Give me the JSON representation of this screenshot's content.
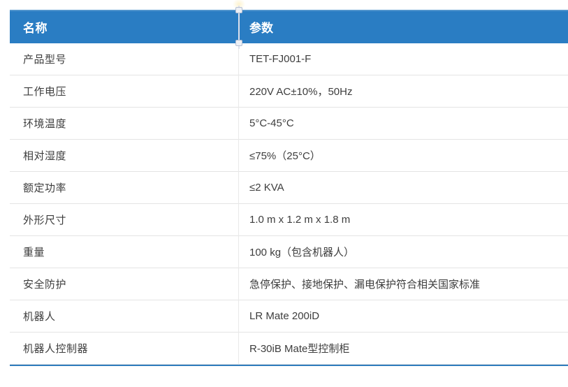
{
  "table": {
    "columns": [
      "名称",
      "参数"
    ],
    "rows": [
      {
        "name": "产品型号",
        "value": "TET-FJ001-F"
      },
      {
        "name": "工作电压",
        "value": "220V AC±10%，50Hz"
      },
      {
        "name": "环境温度",
        "value": "5°C-45°C"
      },
      {
        "name": "相对湿度",
        "value": "≤75%（25°C）"
      },
      {
        "name": "额定功率",
        "value": "≤2 KVA"
      },
      {
        "name": "外形尺寸",
        "value": "1.0 m x 1.2 m x 1.8 m"
      },
      {
        "name": "重量",
        "value": "100 kg（包含机器人）"
      },
      {
        "name": "安全防护",
        "value": "急停保护、接地保护、漏电保护符合相关国家标准"
      },
      {
        "name": "机器人",
        "value": "LR Mate 200iD"
      },
      {
        "name": "机器人控制器",
        "value": "R-30iB Mate型控制柜"
      }
    ]
  },
  "theme": {
    "header_bg": "#2a7dc3",
    "header_text": "#ffffff",
    "body_text": "#3d3d3d",
    "row_divider": "#e4e4e4",
    "column_divider": "#e9e9e9",
    "bottom_border": "#2e7cbd"
  }
}
